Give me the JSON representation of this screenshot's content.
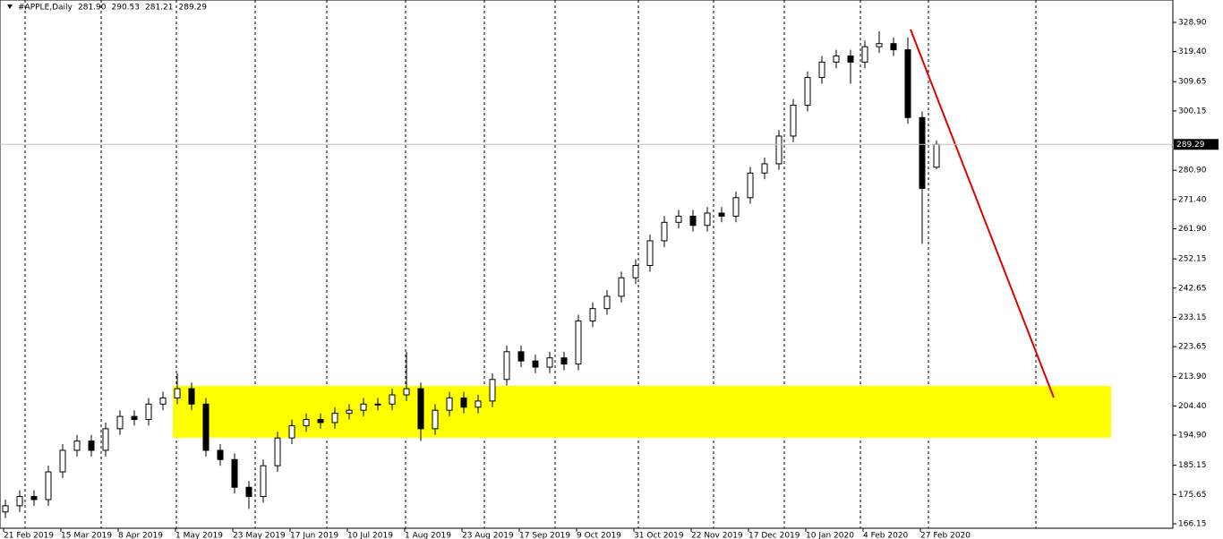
{
  "chart_data": {
    "type": "candlestick",
    "title": "#APPLE,Daily",
    "header_values": [
      "281.90",
      "290.53",
      "281.21",
      "289.29"
    ],
    "categories": [
      "21 Feb 2019",
      "15 Mar 2019",
      "8 Apr 2019",
      "1 May 2019",
      "23 May 2019",
      "17 Jun 2019",
      "10 Jul 2019",
      "1 Aug 2019",
      "23 Aug 2019",
      "17 Sep 2019",
      "9 Oct 2019",
      "31 Oct 2019",
      "22 Nov 2019",
      "17 Dec 2019",
      "10 Jan 2020",
      "4 Feb 2020",
      "27 Feb 2020"
    ],
    "open": [
      170,
      172,
      175,
      174,
      183,
      190,
      193,
      190,
      197,
      201,
      200,
      205,
      207,
      210,
      205,
      190,
      187,
      178,
      175,
      185,
      194,
      198,
      200,
      199,
      202,
      203,
      205,
      205,
      208,
      210,
      197,
      203,
      207,
      204,
      206,
      213,
      222,
      219,
      217,
      220,
      218,
      232,
      236,
      240,
      246,
      250,
      258,
      264,
      266,
      263,
      267,
      266,
      272,
      280,
      283,
      292,
      302,
      311,
      316,
      318,
      316,
      321,
      322,
      320,
      298,
      281.9
    ],
    "high": [
      174,
      177,
      177,
      185,
      192,
      195,
      195,
      199,
      203,
      203,
      207,
      209,
      215,
      212,
      207,
      192,
      189,
      180,
      187,
      196,
      200,
      202,
      202,
      204,
      205,
      207,
      207,
      210,
      222,
      212,
      205,
      209,
      209,
      208,
      215,
      224,
      224,
      221,
      222,
      222,
      234,
      238,
      242,
      248,
      252,
      260,
      266,
      268,
      268,
      269,
      269,
      274,
      282,
      285,
      294,
      304,
      313,
      318,
      320,
      320,
      323,
      326,
      324,
      324,
      300,
      290.53
    ],
    "low": [
      168,
      170,
      172,
      172,
      181,
      188,
      188,
      188,
      195,
      198,
      198,
      203,
      205,
      203,
      188,
      185,
      176,
      171,
      173,
      183,
      192,
      196,
      197,
      197,
      200,
      201,
      203,
      203,
      206,
      193,
      195,
      201,
      202,
      202,
      204,
      211,
      217,
      215,
      215,
      216,
      216,
      230,
      234,
      238,
      244,
      248,
      256,
      262,
      261,
      261,
      264,
      264,
      270,
      278,
      281,
      290,
      300,
      309,
      314,
      309,
      314,
      319,
      318,
      296,
      257,
      281.21
    ],
    "close": [
      172,
      175,
      174,
      183,
      190,
      193,
      190,
      197,
      201,
      200,
      205,
      207,
      210,
      205,
      190,
      187,
      178,
      175,
      185,
      194,
      198,
      200,
      199,
      202,
      203,
      205,
      205,
      208,
      210,
      197,
      203,
      207,
      204,
      206,
      213,
      222,
      219,
      217,
      220,
      218,
      232,
      236,
      240,
      246,
      250,
      258,
      264,
      266,
      263,
      267,
      266,
      272,
      280,
      283,
      292,
      302,
      311,
      316,
      318,
      316,
      321,
      322,
      320,
      298,
      275,
      289.29
    ],
    "ylim": [
      164.7,
      336.16
    ],
    "yticks": [
      {
        "value": 328.9,
        "label": "328.90"
      },
      {
        "value": 319.4,
        "label": "319.40"
      },
      309.65,
      300.15,
      {
        "value": 280.9,
        "label": "280.90"
      },
      {
        "value": 271.4,
        "label": "271.40"
      },
      {
        "value": 261.9,
        "label": "261.90"
      },
      252.15,
      242.65,
      233.15,
      223.65,
      {
        "value": 213.9,
        "label": "213.90"
      },
      {
        "value": 204.4,
        "label": "204.40"
      },
      {
        "value": 194.9,
        "label": "194.90"
      },
      185.15,
      175.65,
      166.15
    ],
    "zone": {
      "from": 194.1,
      "to": 210.9,
      "color": "#ffff00"
    },
    "trendline": {
      "from": 326.6,
      "to": 207.1,
      "color": "#e00000"
    },
    "bull_color": "#ffffff",
    "bear_color": "#000000"
  }
}
